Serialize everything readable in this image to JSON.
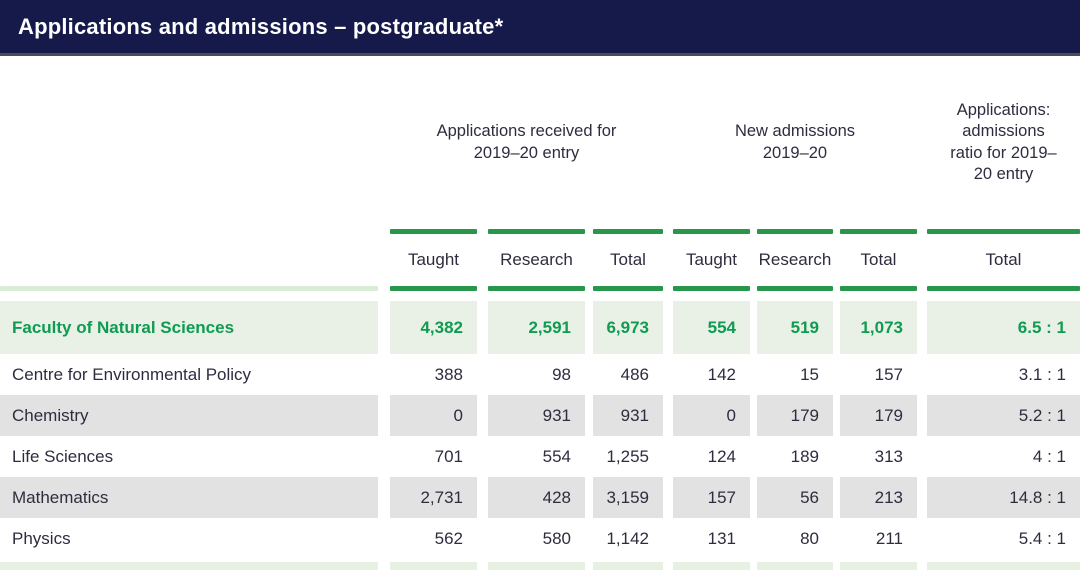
{
  "title": "Applications and admissions – postgraduate*",
  "colors": {
    "title_bar": "#151a4b",
    "accent_green": "#28964b",
    "highlight_text_green": "#0f9b52",
    "highlight_row_bg": "#e9f1e6",
    "zebra_row_bg": "#e2e2e2",
    "body_text": "#2d2d3f"
  },
  "table": {
    "group_headers": {
      "applications": "Applications received for 2019–20 entry",
      "admissions": "New admissions 2019–20",
      "ratio": "Applications: admissions ratio for 2019–20 entry"
    },
    "sub_headers": {
      "apps_taught": "Taught",
      "apps_research": "Research",
      "apps_total": "Total",
      "adm_taught": "Taught",
      "adm_research": "Research",
      "adm_total": "Total",
      "ratio_total": "Total"
    },
    "rows": [
      {
        "name": "Faculty of Natural Sciences",
        "values": [
          "4,382",
          "2,591",
          "6,973",
          "554",
          "519",
          "1,073",
          "6.5 : 1"
        ]
      },
      {
        "name": "Centre for Environmental Policy",
        "values": [
          "388",
          "98",
          "486",
          "142",
          "15",
          "157",
          "3.1 : 1"
        ]
      },
      {
        "name": "Chemistry",
        "values": [
          "0",
          "931",
          "931",
          "0",
          "179",
          "179",
          "5.2 : 1"
        ]
      },
      {
        "name": "Life Sciences",
        "values": [
          "701",
          "554",
          "1,255",
          "124",
          "189",
          "313",
          "4 : 1"
        ]
      },
      {
        "name": "Mathematics",
        "values": [
          "2,731",
          "428",
          "3,159",
          "157",
          "56",
          "213",
          "14.8 : 1"
        ]
      },
      {
        "name": "Physics",
        "values": [
          "562",
          "580",
          "1,142",
          "131",
          "80",
          "211",
          "5.4 : 1"
        ]
      }
    ]
  }
}
